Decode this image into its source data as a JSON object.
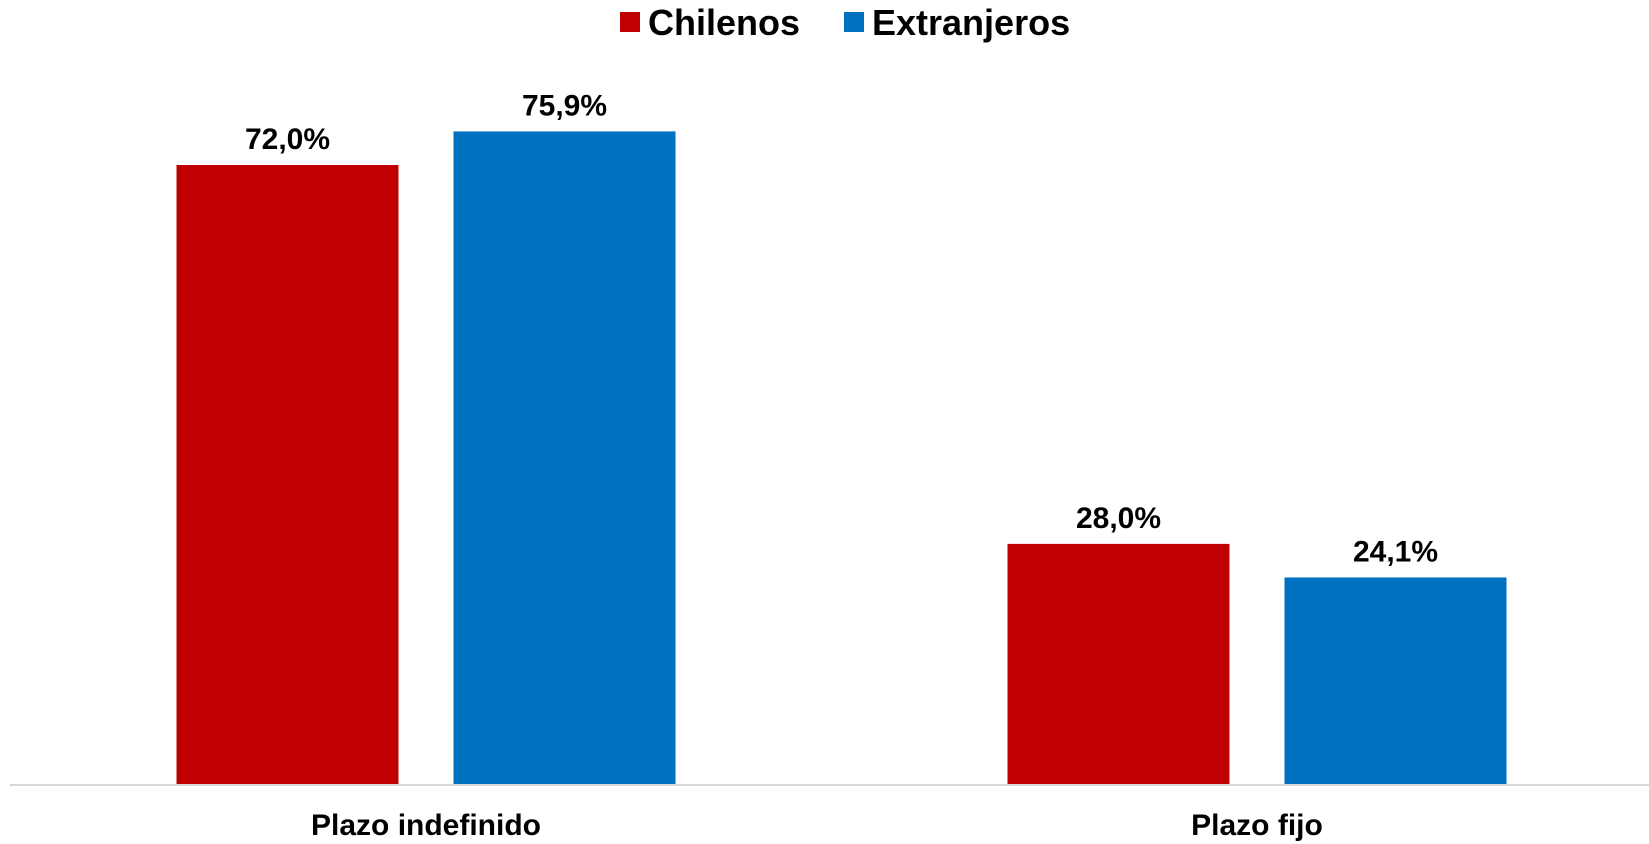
{
  "chart_data": {
    "type": "bar",
    "categories": [
      "Plazo indefinido",
      "Plazo fijo"
    ],
    "series": [
      {
        "name": "Chilenos",
        "values": [
          72.0,
          28.0
        ],
        "labels": [
          "72,0%",
          "28,0%"
        ],
        "color": "#C00000"
      },
      {
        "name": "Extranjeros",
        "values": [
          75.9,
          24.1
        ],
        "labels": [
          "75,9%",
          "24,1%"
        ],
        "color": "#0070C0"
      }
    ],
    "title": "",
    "xlabel": "",
    "ylabel": "",
    "ylim": [
      0,
      90
    ],
    "grid": false,
    "legend_position": "top-center",
    "axis_color": "#D9D9D9"
  }
}
